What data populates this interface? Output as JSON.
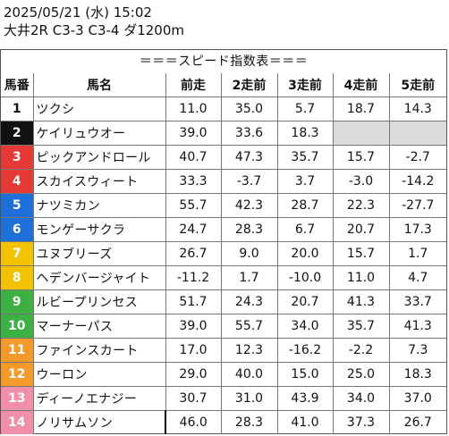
{
  "header": {
    "datetime": "2025/05/21 (水) 15:02",
    "race": "大井2R C3-3 C3-4 ダ1200m"
  },
  "table": {
    "subtitle": "＝＝＝スピード指数表＝＝＝",
    "columns": [
      "馬番",
      "馬名",
      "前走",
      "2走前",
      "3走前",
      "4走前",
      "5走前"
    ],
    "rows": [
      {
        "no": "1",
        "name": "ツクシ",
        "color": "#ffffff",
        "text": "#111111",
        "v": [
          "11.0",
          "35.0",
          "5.7",
          "18.7",
          "14.3"
        ]
      },
      {
        "no": "2",
        "name": "ケイリュウオー",
        "color": "#111111",
        "text": "#ffffff",
        "v": [
          "39.0",
          "33.6",
          "18.3",
          "",
          ""
        ]
      },
      {
        "no": "3",
        "name": "ピックアンドロール",
        "color": "#e53935",
        "text": "#ffffff",
        "v": [
          "40.7",
          "47.3",
          "35.7",
          "15.7",
          "-2.7"
        ]
      },
      {
        "no": "4",
        "name": "スカイスウィート",
        "color": "#e53935",
        "text": "#ffffff",
        "v": [
          "33.3",
          "-3.7",
          "3.7",
          "-3.0",
          "-14.2"
        ]
      },
      {
        "no": "5",
        "name": "ナツミカン",
        "color": "#1e6fd8",
        "text": "#ffffff",
        "v": [
          "55.7",
          "42.3",
          "28.7",
          "22.3",
          "-27.7"
        ]
      },
      {
        "no": "6",
        "name": "モンゲーサクラ",
        "color": "#1e6fd8",
        "text": "#ffffff",
        "v": [
          "24.7",
          "28.3",
          "6.7",
          "20.7",
          "17.3"
        ]
      },
      {
        "no": "7",
        "name": "ユヌブリーズ",
        "color": "#f2c200",
        "text": "#ffffff",
        "v": [
          "26.7",
          "9.0",
          "20.0",
          "15.7",
          "1.7"
        ]
      },
      {
        "no": "8",
        "name": "ヘデンバージャイト",
        "color": "#f2c200",
        "text": "#ffffff",
        "v": [
          "-11.2",
          "1.7",
          "-10.0",
          "11.0",
          "4.7"
        ]
      },
      {
        "no": "9",
        "name": "ルビープリンセス",
        "color": "#3cb043",
        "text": "#ffffff",
        "v": [
          "51.7",
          "24.3",
          "20.7",
          "41.3",
          "33.7"
        ]
      },
      {
        "no": "10",
        "name": "マーナーパス",
        "color": "#3cb043",
        "text": "#ffffff",
        "v": [
          "39.0",
          "55.7",
          "34.0",
          "35.7",
          "41.3"
        ]
      },
      {
        "no": "11",
        "name": "ファインスカート",
        "color": "#f39a2b",
        "text": "#ffffff",
        "v": [
          "17.0",
          "12.3",
          "-16.2",
          "-2.2",
          "7.3"
        ]
      },
      {
        "no": "12",
        "name": "ウーロン",
        "color": "#f39a2b",
        "text": "#ffffff",
        "v": [
          "29.0",
          "40.0",
          "15.0",
          "25.0",
          "18.3"
        ]
      },
      {
        "no": "13",
        "name": "ディーノエナジー",
        "color": "#f08fa8",
        "text": "#ffffff",
        "v": [
          "30.7",
          "31.0",
          "43.9",
          "34.0",
          "37.0"
        ]
      },
      {
        "no": "14",
        "name": "ノリサムソン",
        "color": "#f08fa8",
        "text": "#ffffff",
        "v": [
          "46.0",
          "28.3",
          "41.0",
          "37.3",
          "26.7"
        ]
      }
    ]
  }
}
